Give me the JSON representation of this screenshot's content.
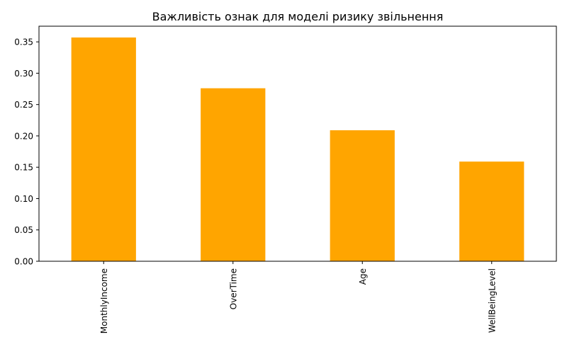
{
  "chart_data": {
    "type": "bar",
    "title": "Важливість ознак для моделі ризику звільнення",
    "xlabel": "",
    "ylabel": "",
    "categories": [
      "MonthlyIncome",
      "OverTime",
      "Age",
      "WellBeingLevel"
    ],
    "values": [
      0.357,
      0.276,
      0.209,
      0.159
    ],
    "ylim": [
      0,
      0.375
    ],
    "yticks": [
      0.0,
      0.05,
      0.1,
      0.15,
      0.2,
      0.25,
      0.3,
      0.35
    ],
    "ytick_labels": [
      "0.00",
      "0.05",
      "0.10",
      "0.15",
      "0.20",
      "0.25",
      "0.30",
      "0.35"
    ],
    "bar_color": "#ffa500",
    "grid": false,
    "legend": false,
    "xtick_rotation": "vertical"
  }
}
